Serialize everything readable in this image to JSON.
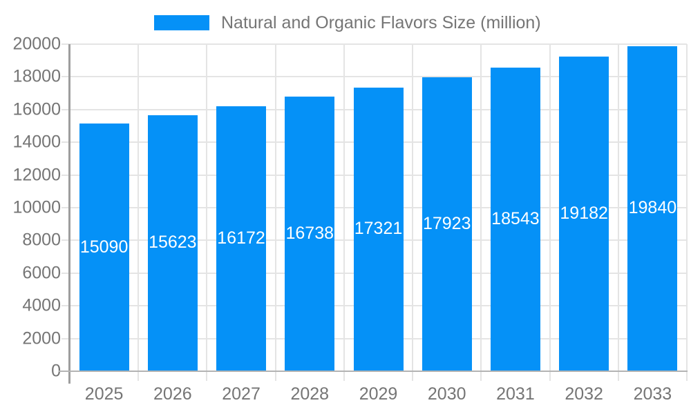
{
  "legend": {
    "label": "Natural and Organic Flavors Size (million)"
  },
  "colors": {
    "bar": "#0591f7",
    "bar_label_text": "#ffffff",
    "axis_text": "#757575",
    "grid_line": "#e4e4e4",
    "axis_line": "#9e9e9e",
    "baseline": "#b3b3b3",
    "background": "#ffffff"
  },
  "chart_data": {
    "type": "bar",
    "title": "",
    "categories": [
      "2025",
      "2026",
      "2027",
      "2028",
      "2029",
      "2030",
      "2031",
      "2032",
      "2033"
    ],
    "series": [
      {
        "name": "Natural and Organic Flavors Size (million)",
        "values": [
          15090,
          15623,
          16172,
          16738,
          17321,
          17923,
          18543,
          19182,
          19840
        ]
      }
    ],
    "xlabel": "",
    "ylabel": "",
    "ylim": [
      0,
      20000
    ],
    "ytick_step": 2000,
    "y_ticks": [
      0,
      2000,
      4000,
      6000,
      8000,
      10000,
      12000,
      14000,
      16000,
      18000,
      20000
    ],
    "grid": true,
    "legend_position": "top-center",
    "data_labels": "inside-middle"
  }
}
